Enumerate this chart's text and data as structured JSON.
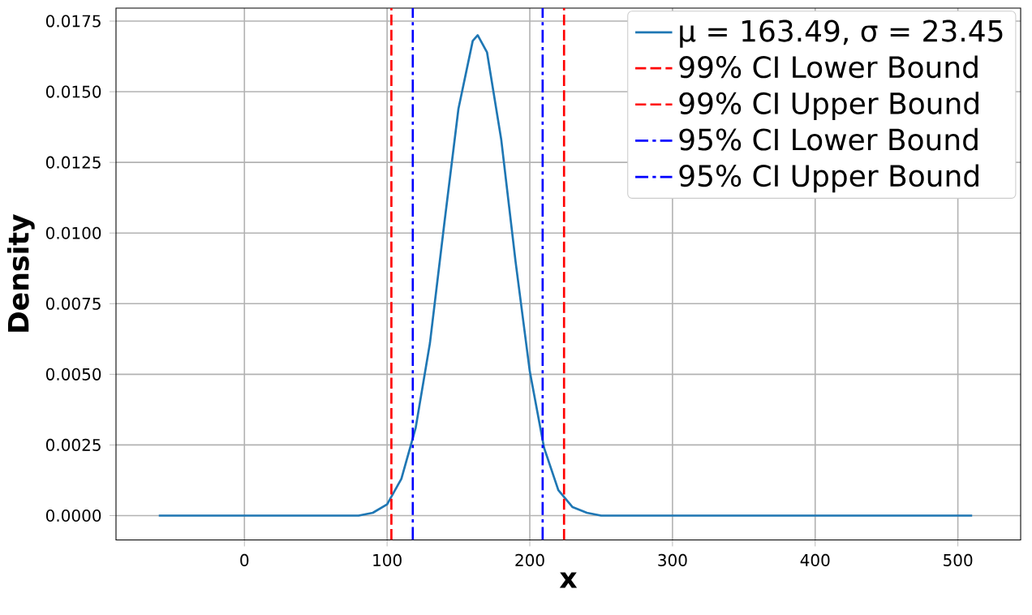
{
  "chart_data": {
    "type": "line",
    "xlabel": "x",
    "ylabel": "Density",
    "x": [
      -60,
      60,
      80,
      90,
      100,
      110,
      120,
      130,
      140,
      150,
      160,
      163.49,
      170,
      180,
      190,
      200,
      210,
      220,
      230,
      240,
      250,
      270,
      510
    ],
    "series": [
      {
        "name": "μ = 163.49, σ = 23.45",
        "color": "#1f77b4",
        "values": [
          0,
          0,
          0,
          0.0001,
          0.0004,
          0.0013,
          0.0031,
          0.0061,
          0.0103,
          0.0144,
          0.0168,
          0.017,
          0.0164,
          0.0133,
          0.009,
          0.0051,
          0.0024,
          0.0009,
          0.0003,
          0.0001,
          0,
          0,
          0
        ]
      },
      {
        "name": "99% CI Lower Bound",
        "color": "#ff0000",
        "line_style": "dashed",
        "x": [
          103,
          103
        ],
        "values": [
          -0.00086,
          0.01796
        ]
      },
      {
        "name": "99% CI Upper Bound",
        "color": "#ff0000",
        "line_style": "dashed",
        "x": [
          224,
          224
        ],
        "values": [
          -0.00086,
          0.01796
        ]
      },
      {
        "name": "95% CI Lower Bound",
        "color": "#0000ff",
        "line_style": "dashdot",
        "x": [
          118,
          118
        ],
        "values": [
          -0.00086,
          0.01796
        ]
      },
      {
        "name": "95% CI Upper Bound",
        "color": "#0000ff",
        "line_style": "dashdot",
        "x": [
          209,
          209
        ],
        "values": [
          -0.00086,
          0.01796
        ]
      }
    ],
    "xlim": [
      -90,
      544
    ],
    "ylim": [
      -0.00086,
      0.01796
    ],
    "xticks": [
      0,
      100,
      200,
      300,
      400,
      500
    ],
    "yticks": [
      {
        "value": 0,
        "label": "0.0000"
      },
      {
        "value": 0.0025,
        "label": "0.0025"
      },
      {
        "value": 0.005,
        "label": "0.0050"
      },
      {
        "value": 0.0075,
        "label": "0.0075"
      },
      {
        "value": 0.01,
        "label": "0.0100"
      },
      {
        "value": 0.0125,
        "label": "0.0125"
      },
      {
        "value": 0.015,
        "label": "0.0150"
      },
      {
        "value": 0.0175,
        "label": "0.0175"
      }
    ],
    "grid": true,
    "legend": "top right"
  }
}
